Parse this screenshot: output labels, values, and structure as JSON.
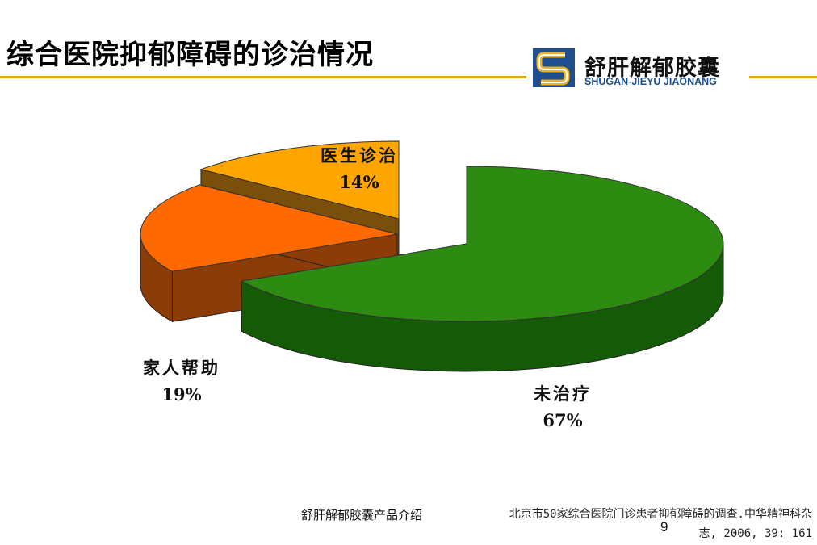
{
  "header": {
    "title": "综合医院抑郁障碍的诊治情况"
  },
  "logo": {
    "cn": "舒肝解郁胶囊",
    "en": "SHUGAN-JIEYU JIAONANG"
  },
  "chart_data": {
    "type": "pie",
    "style": "3d-exploded",
    "slices": [
      {
        "label": "未治疗",
        "value": 67,
        "display": "67%",
        "top_color": "#2E8B11",
        "side_color": "#145A07"
      },
      {
        "label": "家人帮助",
        "value": 19,
        "display": "19%",
        "top_color": "#FF6A00",
        "side_color": "#8B3C07"
      },
      {
        "label": "医生诊治",
        "value": 14,
        "display": "14%",
        "top_color": "#FFA500",
        "side_color": "#7A4F0A"
      }
    ]
  },
  "citation": {
    "line1": "北京市50家综合医院门诊患者抑郁障碍的调查.中华精神科杂",
    "line2": "志, 2006, 39: 161"
  },
  "footer": {
    "text": "舒肝解郁胶囊产品介绍"
  },
  "page": {
    "number": "9"
  },
  "colors": {
    "accent_rule": "#E8A317",
    "logo_blue": "#1F4E8C"
  }
}
